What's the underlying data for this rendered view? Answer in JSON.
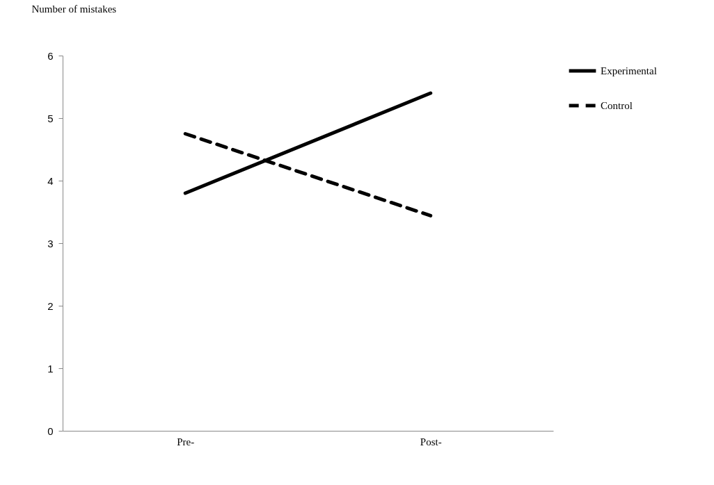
{
  "chart_data": {
    "type": "line",
    "ylabel": "Number of mistakes",
    "categories": [
      "Pre-",
      "Post-"
    ],
    "series": [
      {
        "name": "Experimental",
        "color": "#000000",
        "line_style": "solid",
        "values": [
          3.8,
          5.4
        ]
      },
      {
        "name": "Control",
        "color": "#000000",
        "line_style": "dashed",
        "values": [
          4.75,
          3.44
        ]
      }
    ],
    "ylim": [
      0,
      6
    ],
    "yticks": [
      0,
      1,
      2,
      3,
      4,
      5,
      6
    ],
    "grid": false,
    "legend": "right",
    "marker": "none"
  }
}
